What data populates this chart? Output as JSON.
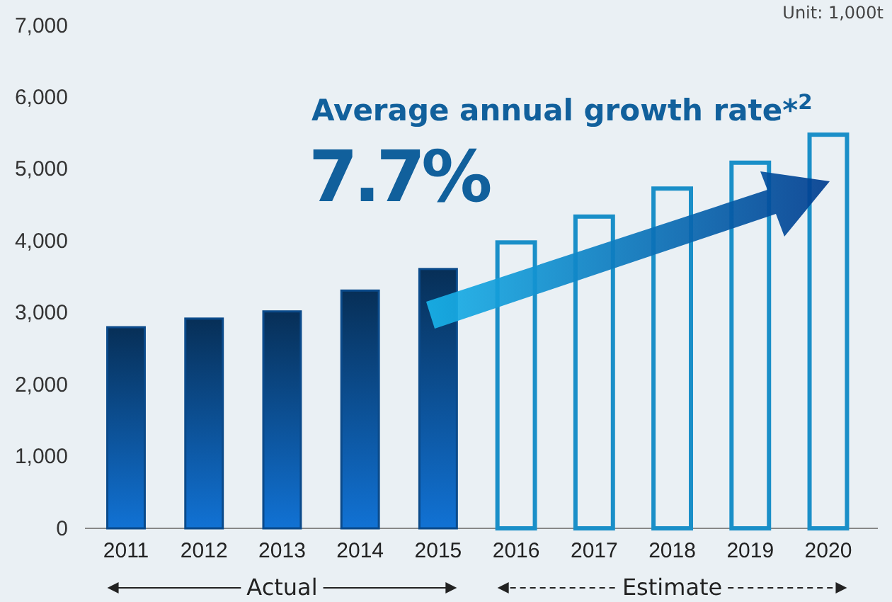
{
  "chart_data": {
    "type": "bar",
    "categories": [
      "2011",
      "2012",
      "2013",
      "2014",
      "2015",
      "2016",
      "2017",
      "2018",
      "2019",
      "2020"
    ],
    "series": [
      {
        "name": "Actual",
        "color": "#0b4a8a",
        "values": [
          2800,
          2920,
          3020,
          3310,
          3610,
          null,
          null,
          null,
          null,
          null
        ]
      },
      {
        "name": "Estimate",
        "color": "#1a8fc8",
        "values": [
          null,
          null,
          null,
          null,
          null,
          3980,
          4340,
          4730,
          5090,
          5480
        ]
      }
    ],
    "ylim": [
      0,
      7000
    ],
    "yticks": [
      0,
      {
        "value": 1000,
        "label": "1,000"
      },
      {
        "value": 2000,
        "label": "2,000"
      },
      {
        "value": 3000,
        "label": "3,000"
      },
      {
        "value": 4000,
        "label": "4,000"
      },
      {
        "value": 5000,
        "label": "5,000"
      },
      {
        "value": 6000,
        "label": "6,000"
      },
      {
        "value": 7000,
        "label": "7,000"
      }
    ],
    "grid": false,
    "annotations": [
      "Unit: 1,000t",
      "Average annual growth rate*$^{2}$",
      "7.7%"
    ]
  }
}
